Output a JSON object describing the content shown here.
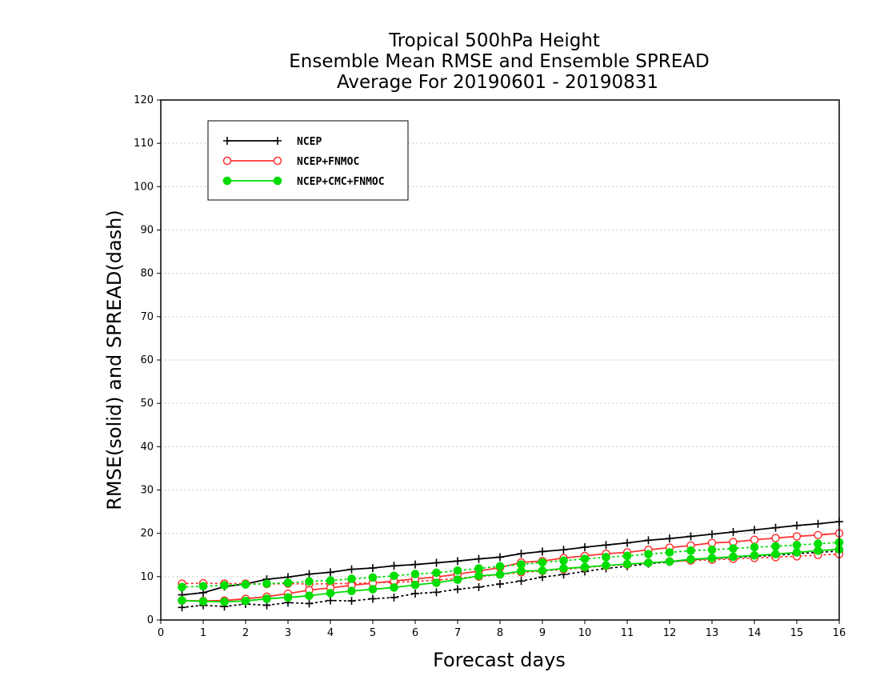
{
  "chart_data": {
    "type": "line",
    "title": [
      "Tropical 500hPa Height",
      "Ensemble Mean RMSE and Ensemble SPREAD",
      "Average For 20190601 - 20190831"
    ],
    "xlabel": "Forecast days",
    "ylabel": "RMSE(solid) and SPREAD(dash)",
    "xlim": [
      0,
      16
    ],
    "ylim": [
      0,
      120
    ],
    "xticks": [
      0,
      1,
      2,
      3,
      4,
      5,
      6,
      7,
      8,
      9,
      10,
      11,
      12,
      13,
      14,
      15,
      16
    ],
    "yticks": [
      0,
      10,
      20,
      30,
      40,
      50,
      60,
      70,
      80,
      90,
      100,
      110,
      120
    ],
    "grid": true,
    "legend_position": "top-left",
    "x": [
      0.5,
      1,
      1.5,
      2,
      2.5,
      3,
      3.5,
      4,
      4.5,
      5,
      5.5,
      6,
      6.5,
      7,
      7.5,
      8,
      8.5,
      9,
      9.5,
      10,
      10.5,
      11,
      11.5,
      12,
      12.5,
      13,
      13.5,
      14,
      14.5,
      15,
      15.5,
      16
    ],
    "series": [
      {
        "name": "NCEP",
        "color": "#000000",
        "marker": "plus",
        "rmse": [
          5.8,
          6.3,
          7.7,
          8.3,
          9.4,
          9.9,
          10.6,
          11.0,
          11.7,
          12.0,
          12.5,
          12.8,
          13.2,
          13.6,
          14.1,
          14.5,
          15.3,
          15.8,
          16.2,
          16.8,
          17.3,
          17.8,
          18.4,
          18.8,
          19.3,
          19.8,
          20.3,
          20.8,
          21.3,
          21.8,
          22.2,
          22.7
        ],
        "spread": [
          2.9,
          3.4,
          3.1,
          3.7,
          3.4,
          4.0,
          3.8,
          4.5,
          4.4,
          4.9,
          5.2,
          6.1,
          6.4,
          7.1,
          7.6,
          8.3,
          9.0,
          9.9,
          10.5,
          11.2,
          11.9,
          12.4,
          13.0,
          13.4,
          13.9,
          14.2,
          14.4,
          14.7,
          14.9,
          15.3,
          15.6,
          15.9
        ]
      },
      {
        "name": "NCEP+FNMOC",
        "color": "#ff3333",
        "marker": "open-circle",
        "rmse": [
          4.5,
          4.4,
          4.5,
          4.9,
          5.4,
          6.1,
          6.9,
          7.4,
          8.0,
          8.5,
          9.0,
          9.5,
          9.9,
          10.6,
          11.3,
          12.1,
          13.3,
          13.6,
          14.3,
          14.8,
          15.3,
          15.6,
          16.2,
          16.7,
          17.2,
          17.8,
          18.0,
          18.5,
          18.9,
          19.3,
          19.6,
          20.0
        ],
        "spread": [
          8.4,
          8.5,
          8.4,
          8.4,
          8.3,
          8.4,
          8.3,
          8.4,
          8.4,
          8.6,
          8.7,
          8.9,
          9.2,
          9.6,
          10.0,
          10.5,
          11.0,
          11.3,
          11.7,
          12.1,
          12.5,
          12.8,
          13.2,
          13.5,
          13.7,
          13.9,
          14.1,
          14.3,
          14.5,
          14.7,
          15.0,
          15.2
        ]
      },
      {
        "name": "NCEP+CMC+FNMOC",
        "color": "#00dd00",
        "marker": "filled-circle",
        "rmse": [
          4.5,
          4.3,
          4.2,
          4.4,
          4.9,
          5.2,
          5.6,
          6.2,
          6.7,
          7.1,
          7.5,
          8.1,
          8.6,
          9.3,
          10.2,
          10.5,
          11.3,
          11.4,
          11.9,
          12.2,
          12.6,
          12.9,
          13.2,
          13.5,
          14.0,
          14.3,
          14.6,
          14.9,
          15.2,
          15.6,
          16.0,
          16.3
        ],
        "spread": [
          7.6,
          7.8,
          8.0,
          8.2,
          8.4,
          8.6,
          8.9,
          9.1,
          9.5,
          9.8,
          10.2,
          10.6,
          10.9,
          11.4,
          11.9,
          12.4,
          12.8,
          13.3,
          13.7,
          14.1,
          14.5,
          14.8,
          15.2,
          15.6,
          16.0,
          16.2,
          16.5,
          16.8,
          17.0,
          17.3,
          17.6,
          17.9
        ]
      }
    ]
  }
}
